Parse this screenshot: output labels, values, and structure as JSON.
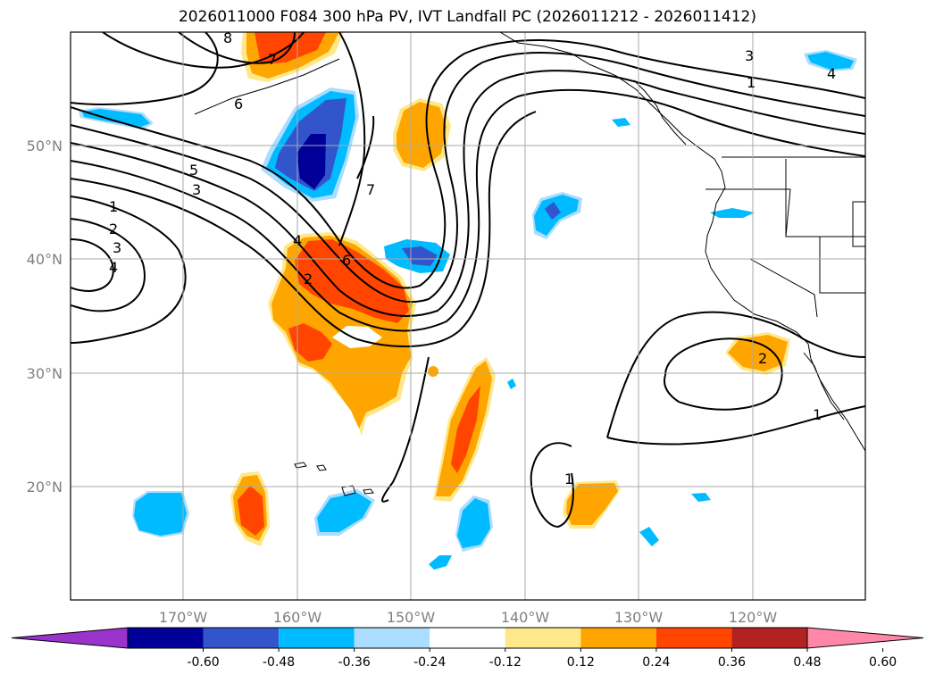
{
  "title": "2026011000 F084 300 hPa PV, IVT Landfall PC (2026011212 - 2026011412)",
  "lon_labels": [
    "170°W",
    "160°W",
    "150°W",
    "140°W",
    "130°W",
    "120°W"
  ],
  "lat_labels": [
    "50°N",
    "40°N",
    "30°N",
    "20°N"
  ],
  "colorbar": {
    "ticks": [
      "-0.60",
      "-0.48",
      "-0.36",
      "-0.24",
      "-0.12",
      "0.12",
      "0.24",
      "0.36",
      "0.48",
      "0.60"
    ],
    "colors": [
      "#9933cc",
      "#000099",
      "#3355cc",
      "#00bbff",
      "#aaddff",
      "#ffffff",
      "#ffe88a",
      "#ffa500",
      "#ff4500",
      "#b22222",
      "#ff88aa"
    ]
  },
  "contour_labels": [
    "8",
    "7",
    "6",
    "5",
    "3",
    "1",
    "2",
    "3",
    "4",
    "4",
    "6",
    "2",
    "7",
    "3",
    "1",
    "4",
    "1",
    "2",
    "1"
  ]
}
